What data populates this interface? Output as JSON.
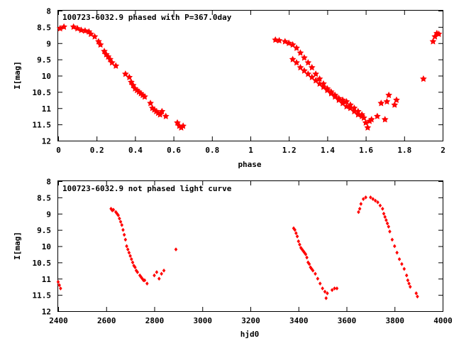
{
  "colors": {
    "point": "#ff0000",
    "axis": "#000000",
    "background": "#ffffff"
  },
  "chart_data": [
    {
      "type": "scatter",
      "title": "100723-6032.9 phased with P=367.0day",
      "xlabel": "phase",
      "ylabel": "I[mag]",
      "xlim": [
        0,
        2
      ],
      "ylim": [
        12,
        8
      ],
      "y_inverted": true,
      "marker": "star",
      "xticks": [
        "0",
        "0.2",
        "0.4",
        "0.6",
        "0.8",
        "1",
        "1.2",
        "1.4",
        "1.6",
        "1.8",
        "2"
      ],
      "yticks": [
        "8",
        "8.5",
        "9",
        "9.5",
        "10",
        "10.5",
        "11",
        "11.5",
        "12"
      ],
      "series": [
        {
          "name": "phased",
          "points": [
            [
              0.01,
              8.55
            ],
            [
              0.03,
              8.5
            ],
            [
              0.08,
              8.5
            ],
            [
              0.1,
              8.55
            ],
            [
              0.12,
              8.6
            ],
            [
              0.14,
              8.62
            ],
            [
              0.16,
              8.65
            ],
            [
              0.17,
              8.72
            ],
            [
              0.19,
              8.8
            ],
            [
              0.21,
              8.95
            ],
            [
              0.22,
              9.05
            ],
            [
              0.24,
              9.25
            ],
            [
              0.25,
              9.35
            ],
            [
              0.26,
              9.42
            ],
            [
              0.27,
              9.5
            ],
            [
              0.28,
              9.6
            ],
            [
              0.3,
              9.7
            ],
            [
              0.35,
              9.95
            ],
            [
              0.37,
              10.05
            ],
            [
              0.38,
              10.2
            ],
            [
              0.39,
              10.3
            ],
            [
              0.4,
              10.4
            ],
            [
              0.41,
              10.45
            ],
            [
              0.42,
              10.5
            ],
            [
              0.43,
              10.55
            ],
            [
              0.44,
              10.6
            ],
            [
              0.45,
              10.65
            ],
            [
              0.48,
              10.85
            ],
            [
              0.49,
              11.0
            ],
            [
              0.5,
              11.05
            ],
            [
              0.51,
              11.1
            ],
            [
              0.52,
              11.15
            ],
            [
              0.53,
              11.2
            ],
            [
              0.54,
              11.1
            ],
            [
              0.56,
              11.25
            ],
            [
              0.62,
              11.45
            ],
            [
              0.63,
              11.55
            ],
            [
              0.64,
              11.6
            ],
            [
              0.65,
              11.55
            ],
            [
              1.13,
              8.9
            ],
            [
              1.15,
              8.92
            ],
            [
              1.18,
              8.95
            ],
            [
              1.2,
              9.0
            ],
            [
              1.22,
              9.05
            ],
            [
              1.24,
              9.15
            ],
            [
              1.26,
              9.3
            ],
            [
              1.28,
              9.45
            ],
            [
              1.3,
              9.6
            ],
            [
              1.32,
              9.75
            ],
            [
              1.34,
              9.95
            ],
            [
              1.36,
              10.1
            ],
            [
              1.38,
              10.25
            ],
            [
              1.4,
              10.4
            ],
            [
              1.42,
              10.55
            ],
            [
              1.44,
              10.65
            ],
            [
              1.46,
              10.75
            ],
            [
              1.48,
              10.85
            ],
            [
              1.5,
              10.95
            ],
            [
              1.52,
              11.0
            ],
            [
              1.54,
              11.1
            ],
            [
              1.56,
              11.2
            ],
            [
              1.58,
              11.25
            ],
            [
              1.22,
              9.5
            ],
            [
              1.24,
              9.6
            ],
            [
              1.26,
              9.75
            ],
            [
              1.28,
              9.85
            ],
            [
              1.3,
              9.95
            ],
            [
              1.32,
              10.05
            ],
            [
              1.34,
              10.15
            ],
            [
              1.36,
              10.25
            ],
            [
              1.38,
              10.35
            ],
            [
              1.4,
              10.45
            ],
            [
              1.42,
              10.5
            ],
            [
              1.44,
              10.6
            ],
            [
              1.46,
              10.7
            ],
            [
              1.48,
              10.75
            ],
            [
              1.5,
              10.8
            ],
            [
              1.52,
              10.9
            ],
            [
              1.54,
              11.0
            ],
            [
              1.56,
              11.1
            ],
            [
              1.58,
              11.2
            ],
            [
              1.59,
              11.3
            ],
            [
              1.6,
              11.45
            ],
            [
              1.61,
              11.6
            ],
            [
              1.62,
              11.4
            ],
            [
              1.63,
              11.35
            ],
            [
              1.66,
              11.25
            ],
            [
              1.68,
              10.85
            ],
            [
              1.7,
              11.35
            ],
            [
              1.71,
              10.8
            ],
            [
              1.72,
              10.6
            ],
            [
              1.75,
              10.9
            ],
            [
              1.76,
              10.75
            ],
            [
              1.9,
              10.1
            ],
            [
              1.95,
              8.95
            ],
            [
              1.96,
              8.8
            ],
            [
              1.97,
              8.7
            ],
            [
              1.98,
              8.72
            ]
          ]
        }
      ]
    },
    {
      "type": "scatter",
      "title": "100723-6032.9 not phased light curve",
      "xlabel": "hjd0",
      "ylabel": "I[mag]",
      "xlim": [
        2400,
        4000
      ],
      "ylim": [
        12,
        8
      ],
      "y_inverted": true,
      "marker": "diamond",
      "xticks": [
        "2400",
        "2600",
        "2800",
        "3000",
        "3200",
        "3400",
        "3600",
        "3800",
        "4000"
      ],
      "yticks": [
        "8",
        "8.5",
        "9",
        "9.5",
        "10",
        "10.5",
        "11",
        "11.5",
        "12"
      ],
      "series": [
        {
          "name": "light curve",
          "points": [
            [
              2400,
              11.1
            ],
            [
              2405,
              11.2
            ],
            [
              2410,
              11.3
            ],
            [
              2620,
              8.85
            ],
            [
              2625,
              8.9
            ],
            [
              2630,
              8.88
            ],
            [
              2640,
              8.95
            ],
            [
              2645,
              9.0
            ],
            [
              2650,
              9.05
            ],
            [
              2655,
              9.15
            ],
            [
              2660,
              9.25
            ],
            [
              2665,
              9.35
            ],
            [
              2670,
              9.5
            ],
            [
              2675,
              9.65
            ],
            [
              2680,
              9.8
            ],
            [
              2685,
              10.0
            ],
            [
              2690,
              10.1
            ],
            [
              2695,
              10.2
            ],
            [
              2700,
              10.3
            ],
            [
              2705,
              10.4
            ],
            [
              2710,
              10.5
            ],
            [
              2715,
              10.6
            ],
            [
              2720,
              10.65
            ],
            [
              2725,
              10.75
            ],
            [
              2730,
              10.8
            ],
            [
              2740,
              10.9
            ],
            [
              2745,
              10.95
            ],
            [
              2750,
              11.0
            ],
            [
              2755,
              11.05
            ],
            [
              2760,
              11.05
            ],
            [
              2770,
              11.15
            ],
            [
              2800,
              10.9
            ],
            [
              2810,
              10.8
            ],
            [
              2820,
              11.0
            ],
            [
              2830,
              10.85
            ],
            [
              2840,
              10.75
            ],
            [
              2890,
              10.1
            ],
            [
              3380,
              9.45
            ],
            [
              3385,
              9.5
            ],
            [
              3390,
              9.6
            ],
            [
              3395,
              9.7
            ],
            [
              3400,
              9.85
            ],
            [
              3405,
              9.95
            ],
            [
              3410,
              10.05
            ],
            [
              3415,
              10.1
            ],
            [
              3420,
              10.15
            ],
            [
              3425,
              10.2
            ],
            [
              3430,
              10.25
            ],
            [
              3435,
              10.35
            ],
            [
              3440,
              10.5
            ],
            [
              3445,
              10.55
            ],
            [
              3450,
              10.65
            ],
            [
              3455,
              10.7
            ],
            [
              3460,
              10.75
            ],
            [
              3470,
              10.85
            ],
            [
              3480,
              11.0
            ],
            [
              3490,
              11.15
            ],
            [
              3500,
              11.3
            ],
            [
              3510,
              11.4
            ],
            [
              3515,
              11.6
            ],
            [
              3520,
              11.45
            ],
            [
              3540,
              11.35
            ],
            [
              3550,
              11.3
            ],
            [
              3560,
              11.3
            ],
            [
              3650,
              8.95
            ],
            [
              3655,
              8.85
            ],
            [
              3660,
              8.7
            ],
            [
              3670,
              8.55
            ],
            [
              3680,
              8.5
            ],
            [
              3700,
              8.5
            ],
            [
              3710,
              8.55
            ],
            [
              3720,
              8.6
            ],
            [
              3730,
              8.65
            ],
            [
              3740,
              8.75
            ],
            [
              3750,
              8.85
            ],
            [
              3755,
              9.0
            ],
            [
              3760,
              9.1
            ],
            [
              3765,
              9.2
            ],
            [
              3770,
              9.3
            ],
            [
              3775,
              9.4
            ],
            [
              3780,
              9.55
            ],
            [
              3790,
              9.8
            ],
            [
              3800,
              10.0
            ],
            [
              3810,
              10.2
            ],
            [
              3820,
              10.4
            ],
            [
              3830,
              10.55
            ],
            [
              3840,
              10.7
            ],
            [
              3850,
              10.9
            ],
            [
              3855,
              11.05
            ],
            [
              3860,
              11.15
            ],
            [
              3865,
              11.25
            ],
            [
              3890,
              11.45
            ],
            [
              3895,
              11.55
            ]
          ]
        }
      ]
    }
  ]
}
